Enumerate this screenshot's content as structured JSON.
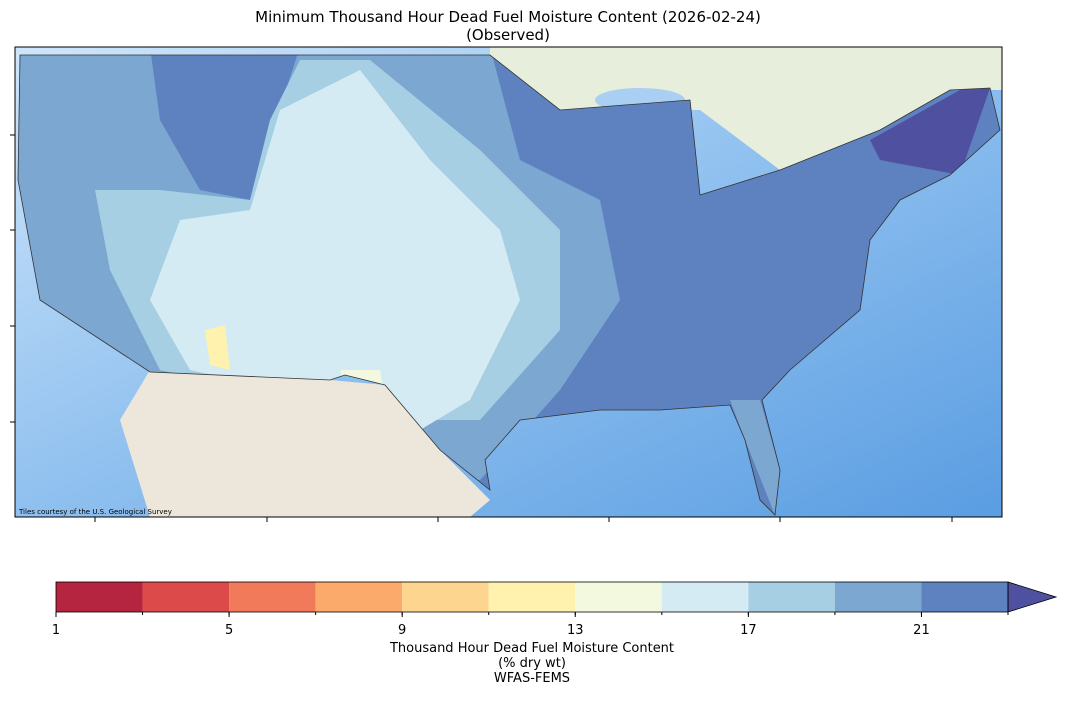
{
  "title": [
    "Minimum Thousand Hour Dead Fuel Moisture Content (2026-02-24)",
    "(Observed)"
  ],
  "map": {
    "attribution": "Tiles courtesy of the U.S. Geological Survey"
  },
  "colorbar": {
    "bounds": [
      1,
      3,
      5,
      7,
      9,
      11,
      13,
      15,
      17,
      19,
      21,
      23
    ],
    "colors": [
      "#b5253f",
      "#dc4a4a",
      "#f07a59",
      "#fca96c",
      "#fed58f",
      "#fff2ae",
      "#f3f9df",
      "#d4ebf3",
      "#a6cfe3",
      "#7ba7d1",
      "#5e82bf"
    ],
    "extend_color": "#5050a0",
    "ticks": [
      1,
      5,
      9,
      13,
      17,
      21
    ],
    "label": [
      "Thousand Hour Dead Fuel Moisture Content",
      "(% dry wt)",
      "WFAS-FEMS"
    ]
  }
}
